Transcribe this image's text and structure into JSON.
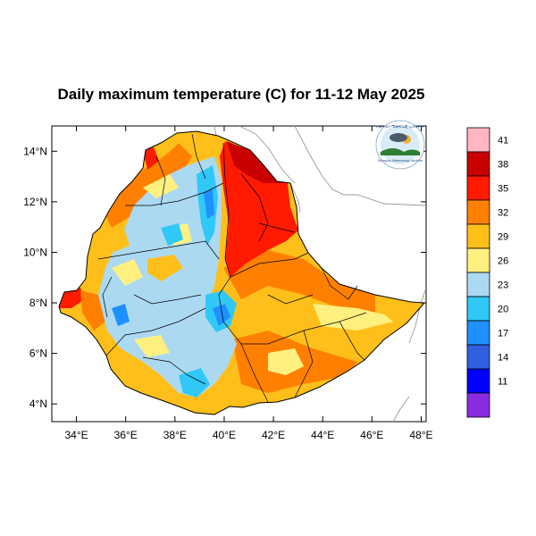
{
  "title": "Daily maximum temperature (C) for 11-12 May 2025",
  "logo": {
    "lettering_top": "የኢትዮጵያ ሜቲዎሮሎጂ ኢንስቲትዩት",
    "lettering_bottom": "Ethiopian Meteorology Institute",
    "colors": {
      "sky": "#d7ecf7",
      "cloud": "#4b5a6a",
      "ground": "#2e7d32",
      "sun": "#f2b233"
    }
  },
  "axes": {
    "x_ticks": [
      "34°E",
      "36°E",
      "38°E",
      "40°E",
      "42°E",
      "44°E",
      "46°E",
      "48°E"
    ],
    "y_ticks": [
      "14°N",
      "12°N",
      "10°N",
      "8°N",
      "6°N",
      "4°N"
    ],
    "lon_range": [
      33,
      48.2
    ],
    "lat_range": [
      3.3,
      15
    ],
    "lon_values": [
      34,
      36,
      38,
      40,
      42,
      44,
      46,
      48
    ],
    "lat_values": [
      14,
      12,
      10,
      8,
      6,
      4
    ]
  },
  "colorbar": {
    "levels": [
      "41",
      "38",
      "35",
      "32",
      "29",
      "26",
      "23",
      "20",
      "17",
      "14",
      "11"
    ],
    "colors": [
      "#ffb6c1",
      "#c80000",
      "#ff1a00",
      "#ff8000",
      "#ffbf1a",
      "#fff080",
      "#acd9f2",
      "#30c8f7",
      "#1e90ff",
      "#3060e0",
      "#0000ff",
      "#8a2be2"
    ]
  },
  "map_colors": {
    "very_hot": "#c80000",
    "hot": "#ff1a00",
    "warm": "#ff8000",
    "mild_warm": "#ffbf1a",
    "mild": "#fff080",
    "cool": "#acd9f2",
    "cooler": "#30c8f7",
    "cold": "#1e90ff",
    "neighbor_border": "#9a9a9a"
  }
}
